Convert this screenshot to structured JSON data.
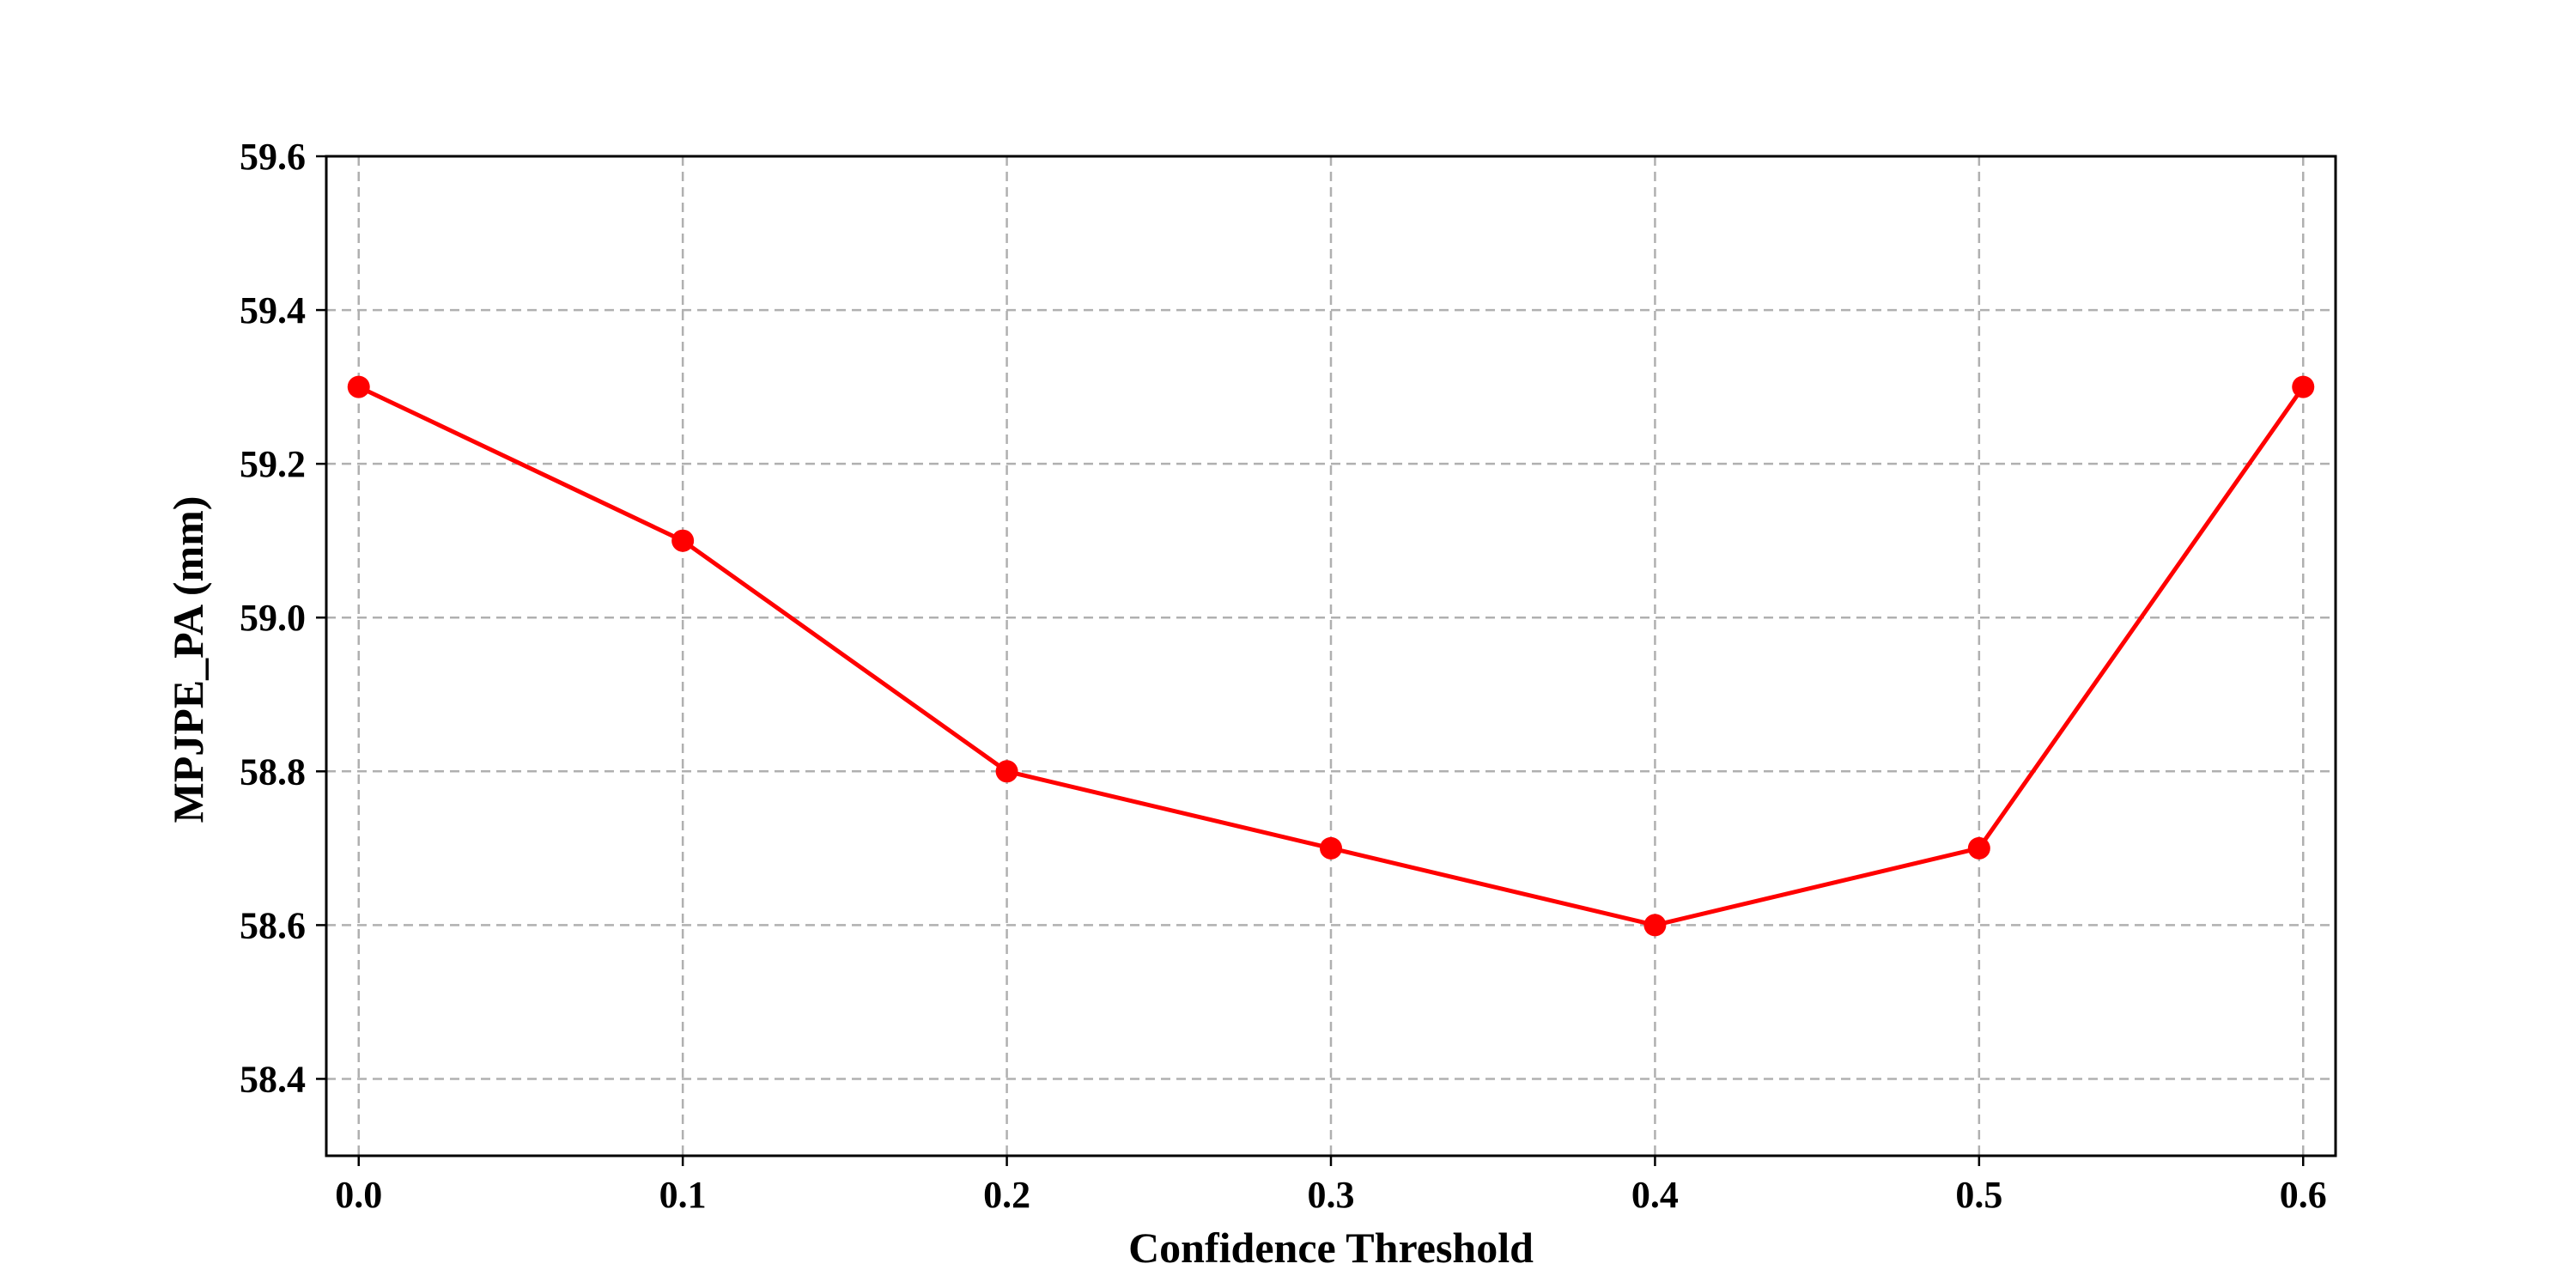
{
  "chart_data": {
    "type": "line",
    "xlabel": "Confidence Threshold",
    "ylabel": "MPJPE_PA (mm)",
    "xlim": [
      -0.01,
      0.61
    ],
    "ylim": [
      58.3,
      59.6
    ],
    "x_ticks": [
      "0.0",
      "0.1",
      "0.2",
      "0.3",
      "0.4",
      "0.5",
      "0.6"
    ],
    "y_ticks": [
      "58.4",
      "58.6",
      "58.8",
      "59.0",
      "59.2",
      "59.4",
      "59.6"
    ],
    "grid": true,
    "legend": "none",
    "series": [
      {
        "color": "#ff0000",
        "marker": "circle",
        "x": [
          0.0,
          0.1,
          0.2,
          0.3,
          0.4,
          0.5,
          0.6
        ],
        "y": [
          59.3,
          59.1,
          58.8,
          58.7,
          58.6,
          58.7,
          59.3
        ]
      }
    ]
  }
}
